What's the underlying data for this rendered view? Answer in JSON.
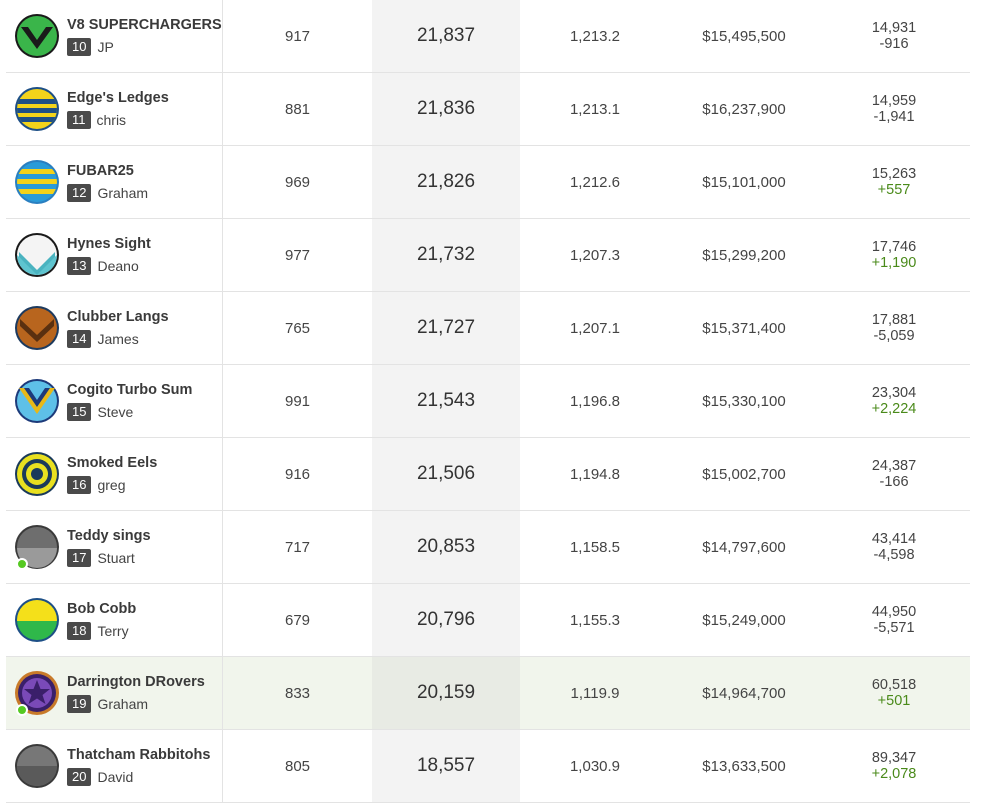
{
  "rows": [
    {
      "name": "V8 SUPERCHARGERS",
      "rank": "10",
      "owner": "JP",
      "games": "917",
      "score": "21,837",
      "avg": "1,213.2",
      "value": "$15,495,500",
      "pos": "14,931",
      "delta": "-916",
      "delta_dir": "neg",
      "avatar_icon": "green-chevron-icon",
      "online": false
    },
    {
      "name": "Edge's Ledges",
      "rank": "11",
      "owner": "chris",
      "games": "881",
      "score": "21,836",
      "avg": "1,213.1",
      "value": "$16,237,900",
      "pos": "14,959",
      "delta": "-1,941",
      "delta_dir": "neg",
      "avatar_icon": "yellow-stripes-icon",
      "online": false
    },
    {
      "name": "FUBAR25",
      "rank": "12",
      "owner": "Graham",
      "games": "969",
      "score": "21,826",
      "avg": "1,212.6",
      "value": "$15,101,000",
      "pos": "15,263",
      "delta": "+557",
      "delta_dir": "pos",
      "avatar_icon": "blue-yellow-stripes-icon",
      "online": false
    },
    {
      "name": "Hynes Sight",
      "rank": "13",
      "owner": "Deano",
      "games": "977",
      "score": "21,732",
      "avg": "1,207.3",
      "value": "$15,299,200",
      "pos": "17,746",
      "delta": "+1,190",
      "delta_dir": "pos",
      "avatar_icon": "teal-vee-icon",
      "online": false
    },
    {
      "name": "Clubber Langs",
      "rank": "14",
      "owner": "James",
      "games": "765",
      "score": "21,727",
      "avg": "1,207.1",
      "value": "$15,371,400",
      "pos": "17,881",
      "delta": "-5,059",
      "delta_dir": "neg",
      "avatar_icon": "brown-chevron-icon",
      "online": false
    },
    {
      "name": "Cogito Turbo Sum",
      "rank": "15",
      "owner": "Steve",
      "games": "991",
      "score": "21,543",
      "avg": "1,196.8",
      "value": "$15,330,100",
      "pos": "23,304",
      "delta": "+2,224",
      "delta_dir": "pos",
      "avatar_icon": "blue-gold-chevron-icon",
      "online": false
    },
    {
      "name": "Smoked Eels",
      "rank": "16",
      "owner": "greg",
      "games": "916",
      "score": "21,506",
      "avg": "1,194.8",
      "value": "$15,002,700",
      "pos": "24,387",
      "delta": "-166",
      "delta_dir": "neg",
      "avatar_icon": "target-rings-icon",
      "online": false
    },
    {
      "name": "Teddy sings",
      "rank": "17",
      "owner": "Stuart",
      "games": "717",
      "score": "20,853",
      "avg": "1,158.5",
      "value": "$14,797,600",
      "pos": "43,414",
      "delta": "-4,598",
      "delta_dir": "neg",
      "avatar_icon": "grey-ball-icon",
      "online": true
    },
    {
      "name": "Bob Cobb",
      "rank": "18",
      "owner": "Terry",
      "games": "679",
      "score": "20,796",
      "avg": "1,155.3",
      "value": "$15,249,000",
      "pos": "44,950",
      "delta": "-5,571",
      "delta_dir": "neg",
      "avatar_icon": "yellow-green-ball-icon",
      "online": false
    },
    {
      "name": "Darrington DRovers",
      "rank": "19",
      "owner": "Graham",
      "games": "833",
      "score": "20,159",
      "avg": "1,119.9",
      "value": "$14,964,700",
      "pos": "60,518",
      "delta": "+501",
      "delta_dir": "pos",
      "avatar_icon": "purple-star-icon",
      "online": true,
      "highlight": true
    },
    {
      "name": "Thatcham Rabbitohs",
      "rank": "20",
      "owner": "David",
      "games": "805",
      "score": "18,557",
      "avg": "1,030.9",
      "value": "$13,633,500",
      "pos": "89,347",
      "delta": "+2,078",
      "delta_dir": "pos",
      "avatar_icon": "grey-split-ball-icon",
      "online": false
    }
  ]
}
